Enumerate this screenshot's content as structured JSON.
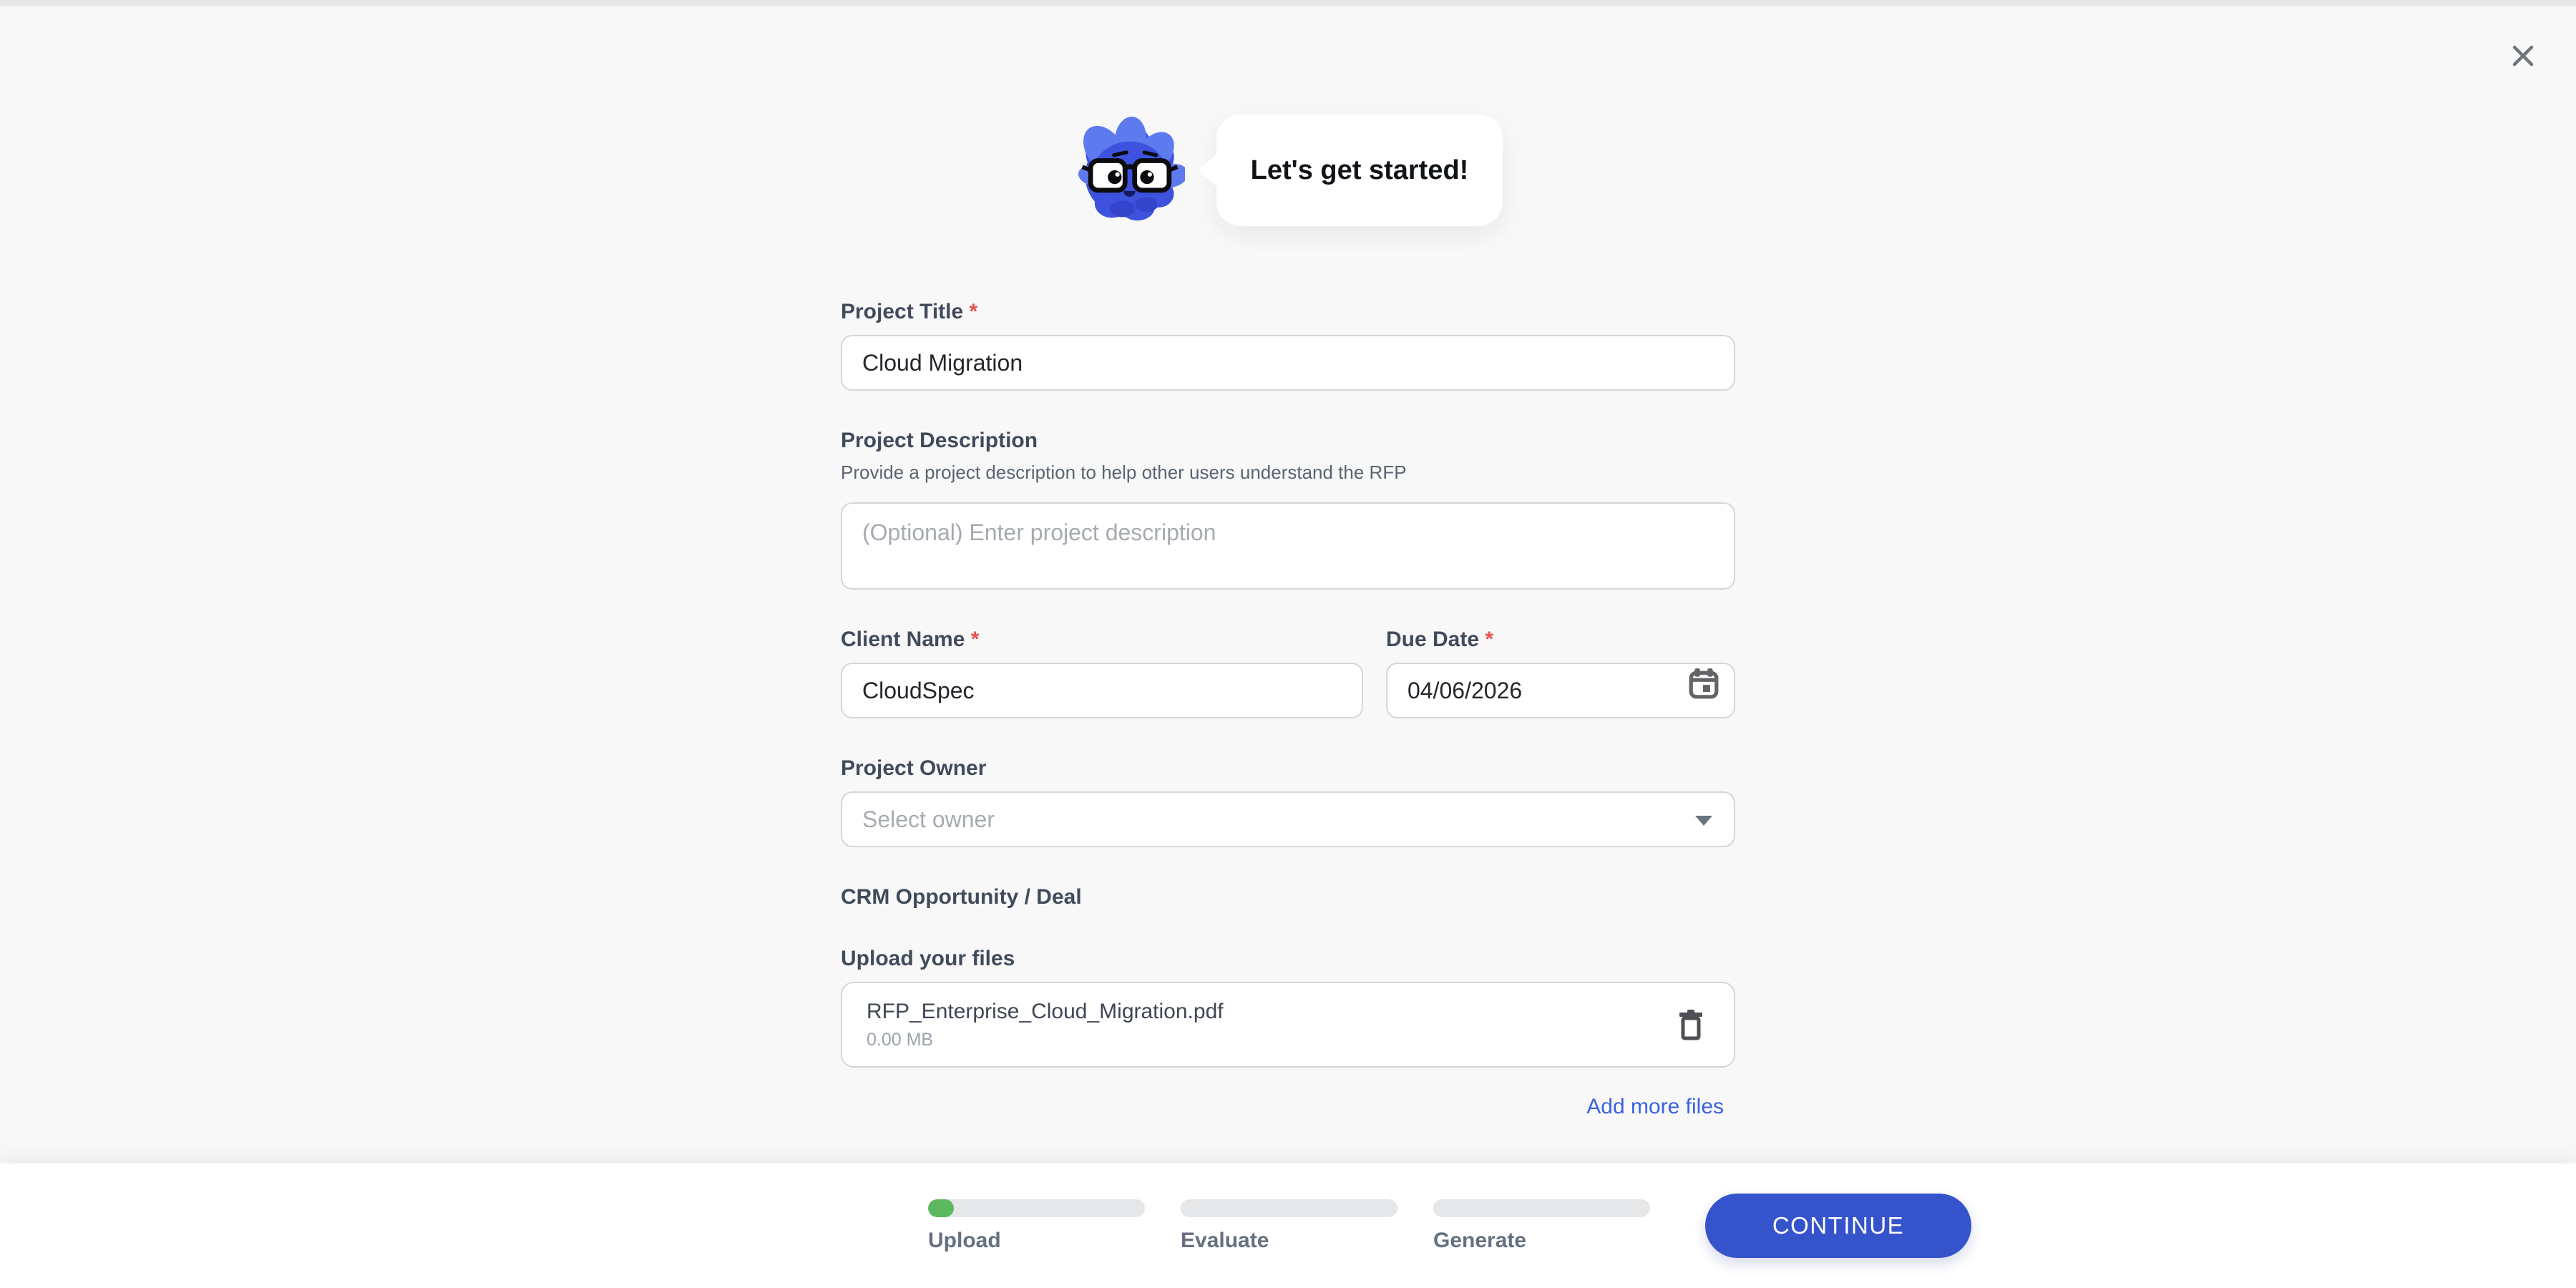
{
  "ui": {
    "required_marker": "*"
  },
  "header": {
    "assistant_message": "Let's get started!",
    "mascot_icon": "mascot-avatar"
  },
  "close": {
    "icon": "close-icon"
  },
  "form": {
    "project_title": {
      "label": "Project Title",
      "required": true,
      "value": "Cloud Migration"
    },
    "project_description": {
      "label": "Project Description",
      "helper": "Provide a project description to help other users understand the RFP",
      "placeholder": "(Optional) Enter project description",
      "value": ""
    },
    "client_name": {
      "label": "Client Name",
      "required": true,
      "value": "CloudSpec"
    },
    "due_date": {
      "label": "Due Date",
      "required": true,
      "value": "04/06/2026",
      "icon": "calendar-icon"
    },
    "project_owner": {
      "label": "Project Owner",
      "placeholder": "Select owner",
      "icon": "chevron-down-icon"
    },
    "crm_opportunity": {
      "label": "CRM Opportunity / Deal"
    },
    "upload": {
      "label": "Upload your files",
      "files": [
        {
          "name": "RFP_Enterprise_Cloud_Migration.pdf",
          "size": "0.00 MB",
          "delete_icon": "trash-icon"
        }
      ],
      "add_more_label": "Add more files"
    }
  },
  "footer": {
    "steps": [
      {
        "label": "Upload",
        "progress_percent": 12
      },
      {
        "label": "Evaluate",
        "progress_percent": 0
      },
      {
        "label": "Generate",
        "progress_percent": 0
      }
    ],
    "continue_label": "CONTINUE"
  },
  "colors": {
    "accent": "#3553CB",
    "progress": "#5CB85F",
    "link": "#3A63DC",
    "required": "#E5524E"
  }
}
